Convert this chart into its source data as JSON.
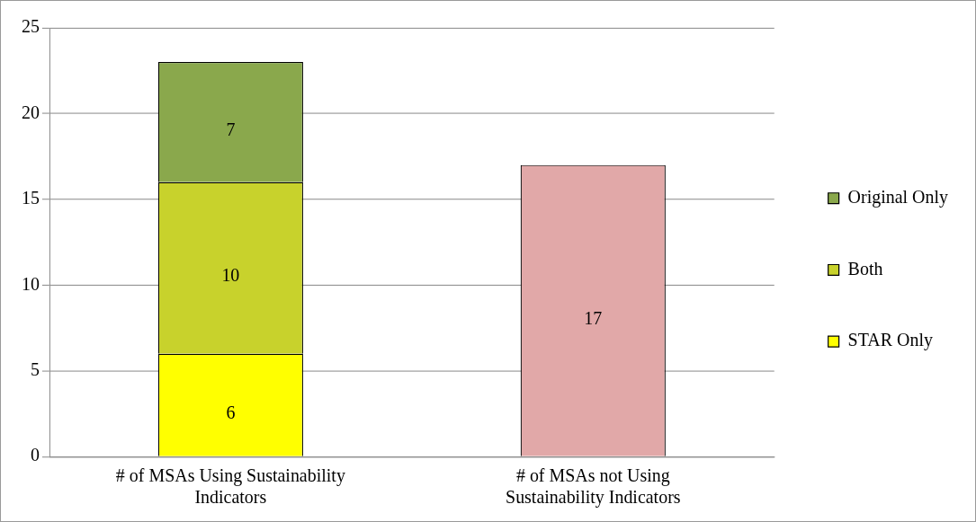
{
  "chart_data": {
    "type": "bar",
    "stacked": true,
    "categories": [
      "# of MSAs Using Sustainability Indicators",
      "# of MSAs not Using Sustainability Indicators"
    ],
    "series": [
      {
        "name": "STAR Only",
        "color": "#ffff00",
        "values": [
          6,
          null
        ]
      },
      {
        "name": "Both",
        "color": "#c8d22c",
        "values": [
          10,
          null
        ]
      },
      {
        "name": "Original Only",
        "color": "#8aa84c",
        "values": [
          7,
          null
        ]
      },
      {
        "color": "#e1a8a8",
        "values": [
          null,
          17
        ]
      }
    ],
    "ylim": [
      0,
      25
    ],
    "yticks": [
      0,
      5,
      10,
      15,
      20,
      25
    ],
    "grid": "y",
    "legend": "right",
    "data_labels": true
  }
}
